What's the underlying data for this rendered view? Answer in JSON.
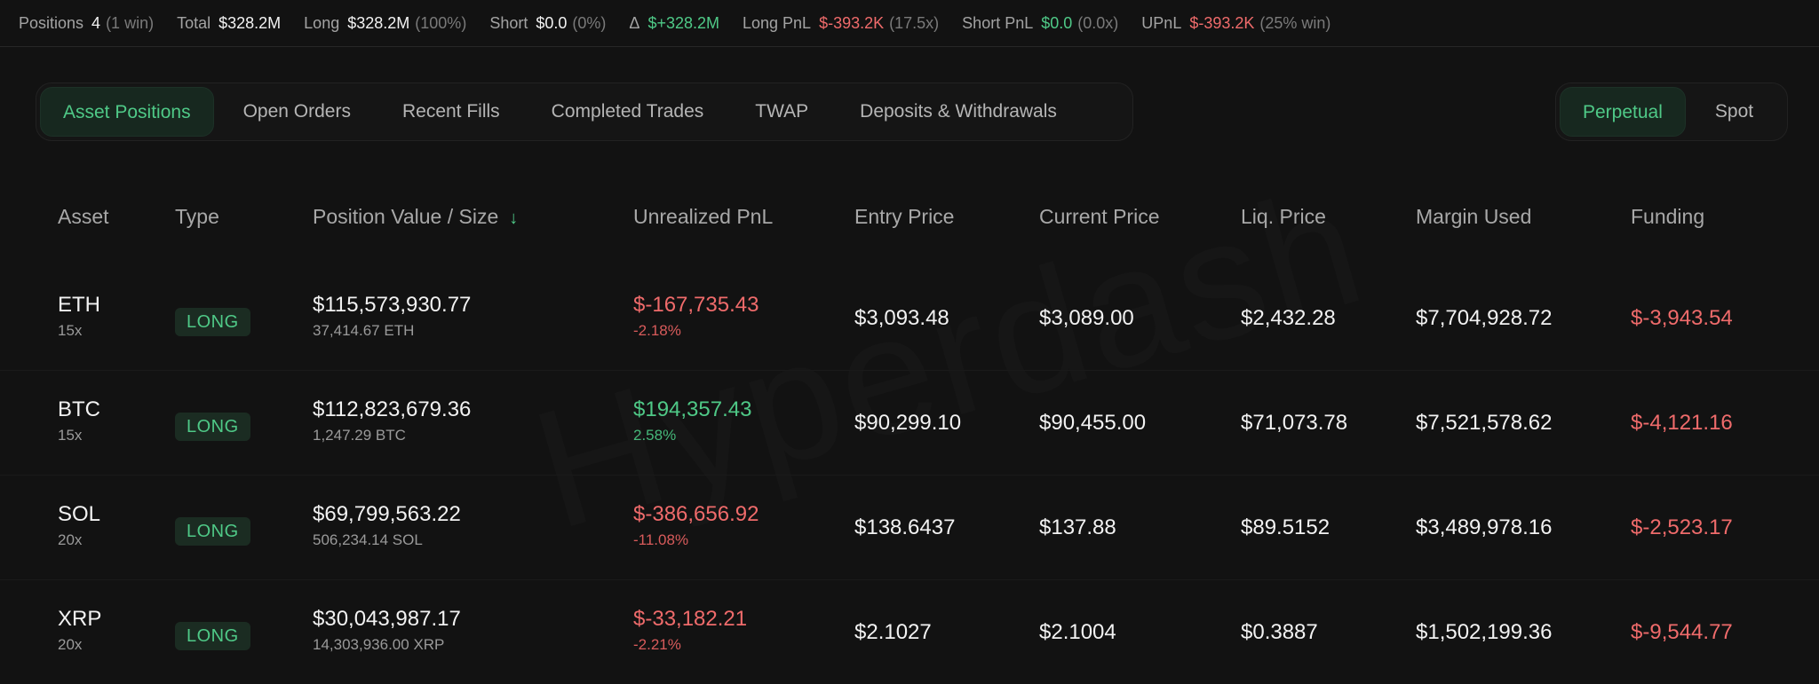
{
  "stats": [
    {
      "label": "Positions",
      "value": "4",
      "sub": "(1 win)",
      "value_tone": ""
    },
    {
      "label": "Total",
      "value": "$328.2M",
      "sub": "",
      "value_tone": ""
    },
    {
      "label": "Long",
      "value": "$328.2M",
      "sub": "(100%)",
      "value_tone": ""
    },
    {
      "label": "Short",
      "value": "$0.0",
      "sub": "(0%)",
      "value_tone": ""
    },
    {
      "label": "Δ",
      "value": "$+328.2M",
      "sub": "",
      "value_tone": "pos"
    },
    {
      "label": "Long PnL",
      "value": "$-393.2K",
      "sub": "(17.5x)",
      "value_tone": "neg"
    },
    {
      "label": "Short PnL",
      "value": "$0.0",
      "sub": "(0.0x)",
      "value_tone": "pos"
    },
    {
      "label": "UPnL",
      "value": "$-393.2K",
      "sub": "(25% win)",
      "value_tone": "neg"
    }
  ],
  "tabs": {
    "left": [
      "Asset Positions",
      "Open Orders",
      "Recent Fills",
      "Completed Trades",
      "TWAP",
      "Deposits & Withdrawals"
    ],
    "left_active": 0,
    "right": [
      "Perpetual",
      "Spot"
    ],
    "right_active": 0
  },
  "table": {
    "headers": {
      "asset": "Asset",
      "type": "Type",
      "value": "Position Value / Size",
      "upnl": "Unrealized PnL",
      "entry": "Entry Price",
      "current": "Current Price",
      "liq": "Liq. Price",
      "margin": "Margin Used",
      "funding": "Funding"
    },
    "rows": [
      {
        "asset": "ETH",
        "leverage": "15x",
        "type": "LONG",
        "value": "$115,573,930.77",
        "size": "37,414.67 ETH",
        "upnl": "$-167,735.43",
        "upnl_pct": "-2.18%",
        "upnl_tone": "neg",
        "entry": "$3,093.48",
        "current": "$3,089.00",
        "liq": "$2,432.28",
        "margin": "$7,704,928.72",
        "funding": "$-3,943.54"
      },
      {
        "asset": "BTC",
        "leverage": "15x",
        "type": "LONG",
        "value": "$112,823,679.36",
        "size": "1,247.29 BTC",
        "upnl": "$194,357.43",
        "upnl_pct": "2.58%",
        "upnl_tone": "pos",
        "entry": "$90,299.10",
        "current": "$90,455.00",
        "liq": "$71,073.78",
        "margin": "$7,521,578.62",
        "funding": "$-4,121.16"
      },
      {
        "asset": "SOL",
        "leverage": "20x",
        "type": "LONG",
        "value": "$69,799,563.22",
        "size": "506,234.14 SOL",
        "upnl": "$-386,656.92",
        "upnl_pct": "-11.08%",
        "upnl_tone": "neg",
        "entry": "$138.6437",
        "current": "$137.88",
        "liq": "$89.5152",
        "margin": "$3,489,978.16",
        "funding": "$-2,523.17"
      },
      {
        "asset": "XRP",
        "leverage": "20x",
        "type": "LONG",
        "value": "$30,043,987.17",
        "size": "14,303,936.00 XRP",
        "upnl": "$-33,182.21",
        "upnl_pct": "-2.21%",
        "upnl_tone": "neg",
        "entry": "$2.1027",
        "current": "$2.1004",
        "liq": "$0.3887",
        "margin": "$1,502,199.36",
        "funding": "$-9,544.77"
      }
    ]
  },
  "watermark": "Hyperdash",
  "colors": {
    "positive": "#4fc987",
    "negative": "#ef6b6b",
    "background": "#121212"
  }
}
